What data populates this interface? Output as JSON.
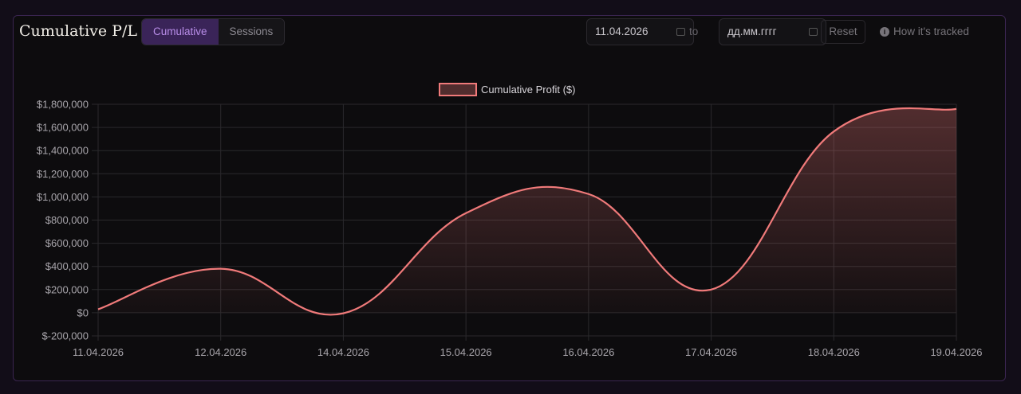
{
  "header": {
    "title": "Cumulative P/L",
    "tabs": [
      {
        "label": "Cumulative",
        "active": true
      },
      {
        "label": "Sessions",
        "active": false
      }
    ],
    "from_date": "11.04.2026",
    "to_label": "to",
    "to_placeholder": "дд.мм.гггг",
    "reset_label": "Reset",
    "info_label": "How it's tracked"
  },
  "colors": {
    "line": "#f07a7a",
    "accent": "#b88de8"
  },
  "chart_data": {
    "type": "area",
    "legend": {
      "label": "Cumulative Profit ($)",
      "position": "top"
    },
    "categories": [
      "11.04.2026",
      "12.04.2026",
      "14.04.2026",
      "15.04.2026",
      "16.04.2026",
      "17.04.2026",
      "18.04.2026",
      "19.04.2026"
    ],
    "series": [
      {
        "name": "Cumulative Profit ($)",
        "values": [
          30000,
          380000,
          -5000,
          860000,
          1025000,
          200000,
          1565000,
          1760000
        ]
      }
    ],
    "ylim": [
      -200000,
      1800000
    ],
    "yticks": [
      -200000,
      0,
      200000,
      400000,
      600000,
      800000,
      1000000,
      1200000,
      1400000,
      1600000,
      1800000
    ],
    "ytick_labels": [
      "$-200,000",
      "$0",
      "$200,000",
      "$400,000",
      "$600,000",
      "$800,000",
      "$1,000,000",
      "$1,200,000",
      "$1,400,000",
      "$1,600,000",
      "$1,800,000"
    ],
    "grid": true
  }
}
